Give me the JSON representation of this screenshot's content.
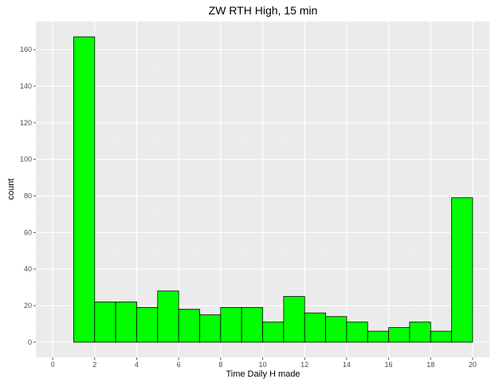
{
  "chart_data": {
    "type": "bar",
    "title": "ZW RTH High, 15 min",
    "xlabel": "Time Daily H made",
    "ylabel": "count",
    "bin_width": 1,
    "bins": [
      {
        "x_start": 0,
        "x_end": 1,
        "count": 0
      },
      {
        "x_start": 1,
        "x_end": 2,
        "count": 167
      },
      {
        "x_start": 2,
        "x_end": 3,
        "count": 22
      },
      {
        "x_start": 3,
        "x_end": 4,
        "count": 22
      },
      {
        "x_start": 4,
        "x_end": 5,
        "count": 19
      },
      {
        "x_start": 5,
        "x_end": 6,
        "count": 28
      },
      {
        "x_start": 6,
        "x_end": 7,
        "count": 18
      },
      {
        "x_start": 7,
        "x_end": 8,
        "count": 15
      },
      {
        "x_start": 8,
        "x_end": 9,
        "count": 19
      },
      {
        "x_start": 9,
        "x_end": 10,
        "count": 19
      },
      {
        "x_start": 10,
        "x_end": 11,
        "count": 11
      },
      {
        "x_start": 11,
        "x_end": 12,
        "count": 25
      },
      {
        "x_start": 12,
        "x_end": 13,
        "count": 16
      },
      {
        "x_start": 13,
        "x_end": 14,
        "count": 14
      },
      {
        "x_start": 14,
        "x_end": 15,
        "count": 11
      },
      {
        "x_start": 15,
        "x_end": 16,
        "count": 6
      },
      {
        "x_start": 16,
        "x_end": 17,
        "count": 8
      },
      {
        "x_start": 17,
        "x_end": 18,
        "count": 11
      },
      {
        "x_start": 18,
        "x_end": 19,
        "count": 6
      },
      {
        "x_start": 19,
        "x_end": 20,
        "count": 79
      }
    ],
    "xlim": [
      -0.8,
      20.8
    ],
    "ylim": [
      -8.35,
      175.35
    ],
    "x_ticks": [
      0,
      2,
      4,
      6,
      8,
      10,
      12,
      14,
      16,
      18,
      20
    ],
    "y_ticks": [
      0,
      20,
      40,
      60,
      80,
      100,
      120,
      140,
      160
    ],
    "grid": true,
    "legend": "none",
    "colors": {
      "bar_fill": "#00ff00",
      "bar_outline": "#000000",
      "panel_background": "#ebebeb",
      "grid_major": "#ffffff",
      "grid_minor": "#f2f2f2",
      "tick_label": "#4d4d4d"
    }
  }
}
